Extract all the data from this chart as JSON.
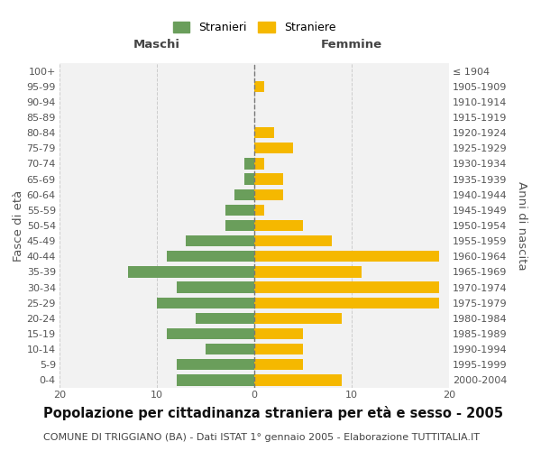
{
  "age_groups": [
    "0-4",
    "5-9",
    "10-14",
    "15-19",
    "20-24",
    "25-29",
    "30-34",
    "35-39",
    "40-44",
    "45-49",
    "50-54",
    "55-59",
    "60-64",
    "65-69",
    "70-74",
    "75-79",
    "80-84",
    "85-89",
    "90-94",
    "95-99",
    "100+"
  ],
  "birth_years": [
    "2000-2004",
    "1995-1999",
    "1990-1994",
    "1985-1989",
    "1980-1984",
    "1975-1979",
    "1970-1974",
    "1965-1969",
    "1960-1964",
    "1955-1959",
    "1950-1954",
    "1945-1949",
    "1940-1944",
    "1935-1939",
    "1930-1934",
    "1925-1929",
    "1920-1924",
    "1915-1919",
    "1910-1914",
    "1905-1909",
    "≤ 1904"
  ],
  "maschi": [
    8,
    8,
    5,
    9,
    6,
    10,
    8,
    13,
    9,
    7,
    3,
    3,
    2,
    1,
    1,
    0,
    0,
    0,
    0,
    0,
    0
  ],
  "femmine": [
    9,
    5,
    5,
    5,
    9,
    19,
    19,
    11,
    19,
    8,
    5,
    1,
    3,
    3,
    1,
    4,
    2,
    0,
    0,
    1,
    0
  ],
  "male_color": "#6a9e5b",
  "female_color": "#f5b800",
  "center_line_color": "#777777",
  "grid_color": "#cccccc",
  "bg_color": "#f2f2f2",
  "title": "Popolazione per cittadinanza straniera per età e sesso - 2005",
  "subtitle": "COMUNE DI TRIGGIANO (BA) - Dati ISTAT 1° gennaio 2005 - Elaborazione TUTTITALIA.IT",
  "xlabel_left": "Maschi",
  "xlabel_right": "Femmine",
  "ylabel_left": "Fasce di età",
  "ylabel_right": "Anni di nascita",
  "legend_stranieri": "Stranieri",
  "legend_straniere": "Straniere",
  "xlim": 20,
  "title_fontsize": 10.5,
  "subtitle_fontsize": 8,
  "tick_fontsize": 8,
  "label_fontsize": 9.5
}
